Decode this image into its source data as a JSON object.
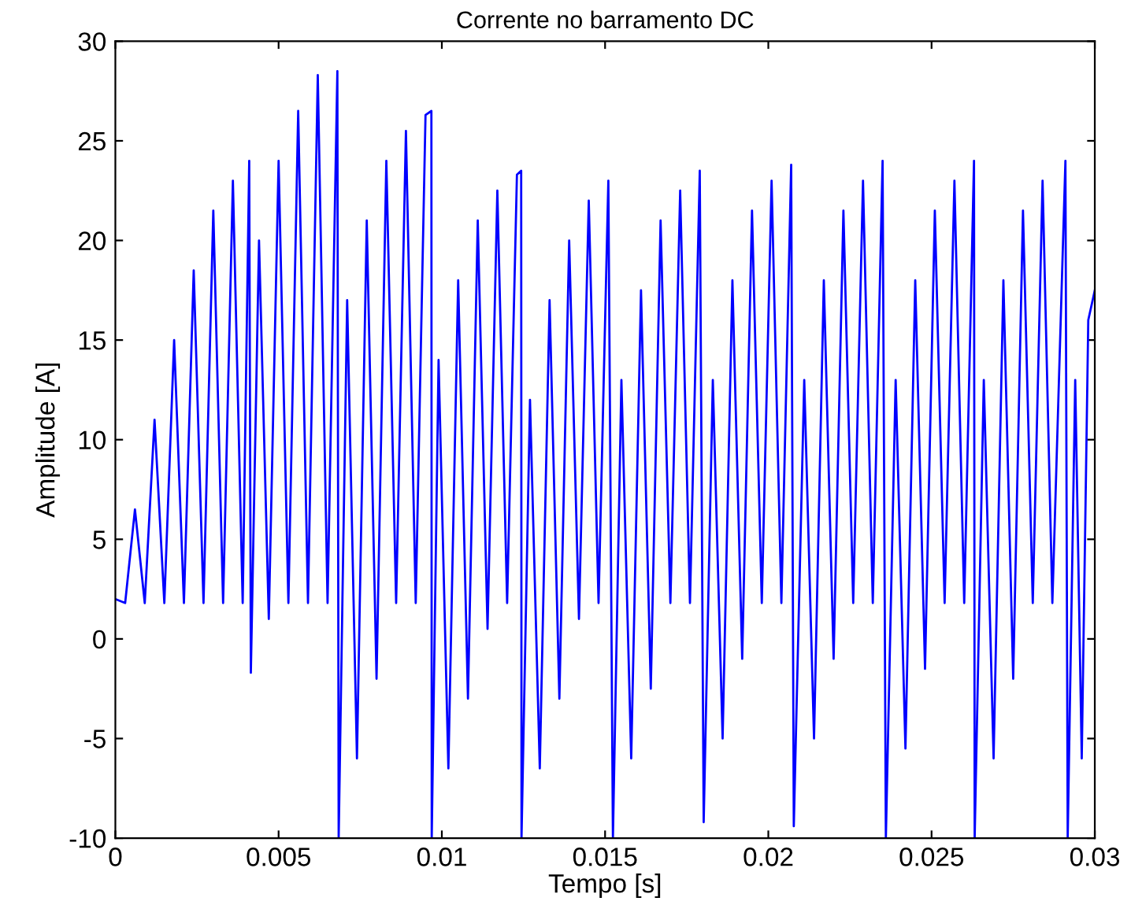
{
  "chart_data": {
    "type": "line",
    "title": "Corrente no barramento DC",
    "xlabel": "Tempo [s]",
    "ylabel": "Amplitude [A]",
    "xlim": [
      0,
      0.03
    ],
    "xticks": [
      0,
      0.005,
      0.01,
      0.015,
      0.02,
      0.025,
      0.03
    ],
    "ylim": [
      -10,
      30
    ],
    "yticks": [
      -10,
      -5,
      0,
      5,
      10,
      15,
      20,
      25,
      30
    ],
    "grid": false,
    "line_style": "solid",
    "marker": "none",
    "series": [
      {
        "color": "#0000ff",
        "x": [
          0,
          0.0003,
          0.0006,
          0.0009,
          0.0012,
          0.0015,
          0.0018,
          0.0021,
          0.0024,
          0.0027,
          0.003,
          0.0033,
          0.0036,
          0.0039,
          0.0041,
          0.00415,
          0.0044,
          0.0047,
          0.005,
          0.0053,
          0.0056,
          0.0059,
          0.0062,
          0.0065,
          0.0068,
          0.00684,
          0.0071,
          0.0074,
          0.0077,
          0.008,
          0.0083,
          0.0086,
          0.0089,
          0.0092,
          0.0095,
          0.00968,
          0.00969,
          0.0099,
          0.0102,
          0.0105,
          0.0108,
          0.0111,
          0.0114,
          0.0117,
          0.012,
          0.0123,
          0.01243,
          0.01244,
          0.0127,
          0.013,
          0.0133,
          0.0136,
          0.0139,
          0.0142,
          0.0145,
          0.0148,
          0.0151,
          0.01524,
          0.0155,
          0.0158,
          0.0161,
          0.0164,
          0.0167,
          0.017,
          0.0173,
          0.0176,
          0.0179,
          0.01802,
          0.0183,
          0.0186,
          0.0189,
          0.0192,
          0.0195,
          0.0198,
          0.0201,
          0.0204,
          0.0207,
          0.02078,
          0.0211,
          0.0214,
          0.0217,
          0.022,
          0.0223,
          0.0226,
          0.0229,
          0.0232,
          0.0235,
          0.0236,
          0.0239,
          0.0242,
          0.0245,
          0.0248,
          0.0251,
          0.0254,
          0.0257,
          0.026,
          0.0263,
          0.02632,
          0.0266,
          0.0269,
          0.0272,
          0.0275,
          0.0278,
          0.0281,
          0.0284,
          0.0287,
          0.0291,
          0.02917,
          0.0294,
          0.0296,
          0.0298,
          0.03
        ],
        "values": [
          2,
          1.8,
          6.5,
          1.8,
          11,
          1.8,
          15,
          1.8,
          18.5,
          1.8,
          21.5,
          1.8,
          23,
          1.8,
          24,
          -1.7,
          20,
          1.0,
          24,
          1.8,
          26.5,
          1.8,
          28.3,
          1.8,
          28.5,
          -10,
          17,
          -6,
          21,
          -2,
          24,
          1.8,
          25.5,
          1.8,
          26.3,
          26.5,
          -10,
          14,
          -6.5,
          18,
          -3,
          21,
          0.5,
          22.5,
          1.8,
          23.3,
          23.5,
          -10,
          12,
          -6.5,
          17,
          -3,
          20,
          1.0,
          22,
          1.8,
          23,
          -10,
          13,
          -6,
          17.5,
          -2.5,
          21,
          1.8,
          22.5,
          1.8,
          23.5,
          -9.2,
          13,
          -5,
          18,
          -1,
          21.5,
          1.8,
          23,
          1.8,
          23.8,
          -9.4,
          13,
          -5,
          18,
          -1,
          21.5,
          1.8,
          23,
          1.8,
          24,
          -10,
          13,
          -5.5,
          18,
          -1.5,
          21.5,
          1.8,
          23,
          1.8,
          24,
          -10,
          13,
          -6,
          18,
          -2,
          21.5,
          1.8,
          23,
          1.8,
          24,
          -10,
          13,
          -6,
          16,
          17.5
        ]
      }
    ]
  }
}
